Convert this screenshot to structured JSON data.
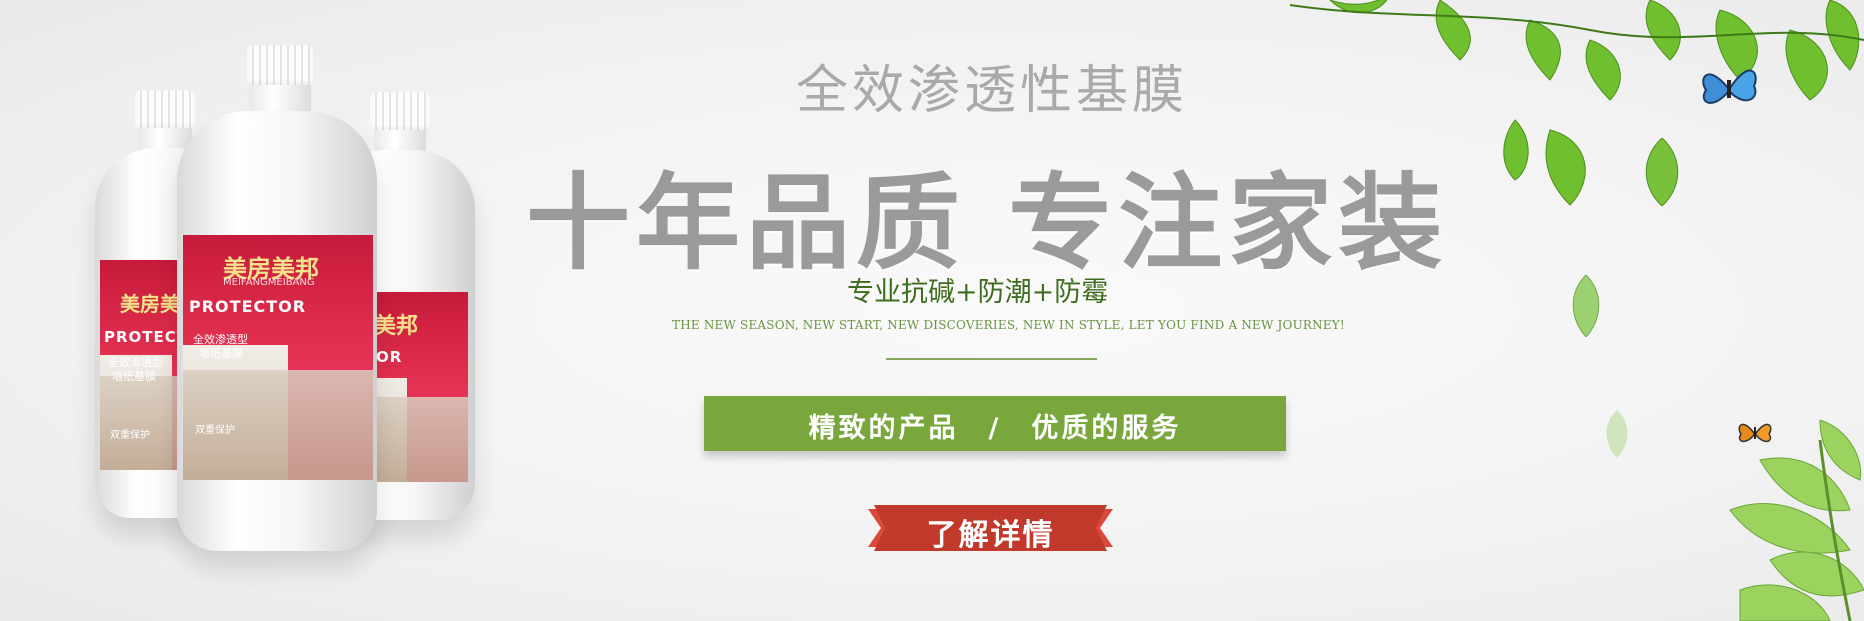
{
  "banner": {
    "subtitle": "全效渗透性基膜",
    "headline": "十年品质 专注家装",
    "features": "专业抗碱+防潮+防霉",
    "tagline": "THE NEW SEASON, NEW START, NEW DISCOVERIES, NEW IN STYLE, LET YOU FIND A NEW JOURNEY!",
    "slogan": "精致的产品　/　优质的服务",
    "button_label": "了解详情"
  },
  "product": {
    "brand_cn": "美房美邦",
    "brand_en": "MEIFANGMEIBANG",
    "name": "PROTECTOR",
    "desc_line1": "全效渗透型",
    "desc_line2": "墙纸基膜",
    "badge": "双重保护"
  },
  "colors": {
    "accent_green": "#7aa73b",
    "button_red": "#c0392b",
    "headline_gray": "#9a9a9a",
    "label_red": "#e2304f"
  }
}
